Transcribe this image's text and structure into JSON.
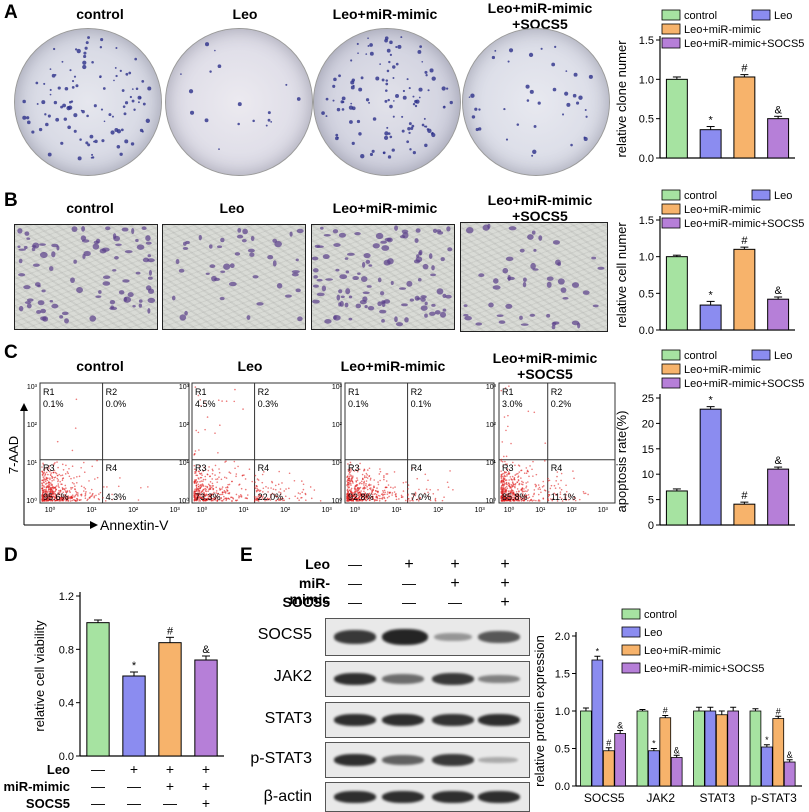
{
  "panel_A": {
    "letter": "A",
    "columns": [
      "control",
      "Leo",
      "Leo+miR-mimic",
      "Leo+miR-mimic\n+SOCS5"
    ]
  },
  "panel_B": {
    "letter": "B",
    "columns": [
      "control",
      "Leo",
      "Leo+miR-mimic",
      "Leo+miR-mimic\n+SOCS5"
    ]
  },
  "panel_C": {
    "letter": "C",
    "columns": [
      "control",
      "Leo",
      "Leo+miR-mimic",
      "Leo+miR-mimic\n+SOCS5"
    ],
    "y_axis_label": "7-AAD",
    "x_axis_label": "Annextin-V",
    "plots": [
      {
        "R1": "0.1%",
        "R2": "0.0%",
        "R3": "95.6%",
        "R4": "4.3%"
      },
      {
        "R1": "4.5%",
        "R2": "0.3%",
        "R3": "73.3%",
        "R4": "22.0%"
      },
      {
        "R1": "0.1%",
        "R2": "0.1%",
        "R3": "92.8%",
        "R4": "7.0%"
      },
      {
        "R1": "3.0%",
        "R2": "0.2%",
        "R3": "85.8%",
        "R4": "11.1%"
      }
    ],
    "region_names": {
      "r1": "R1",
      "r2": "R2",
      "r3": "R3",
      "r4": "R4"
    },
    "y_ticks": [
      "10³",
      "10²",
      "10¹",
      "10⁰"
    ],
    "x_ticks": [
      "10⁰",
      "10¹",
      "10²",
      "10³"
    ]
  },
  "panel_D": {
    "letter": "D"
  },
  "panel_E": {
    "letter": "E",
    "treatment_rows": [
      {
        "label": "Leo",
        "marks": [
          "—",
          "+",
          "+",
          "+"
        ]
      },
      {
        "label": "miR-mimic",
        "marks": [
          "—",
          "—",
          "+",
          "+"
        ]
      },
      {
        "label": "SOCS5",
        "marks": [
          "—",
          "—",
          "—",
          "+"
        ]
      }
    ],
    "blot_labels": [
      "SOCS5",
      "JAK2",
      "STAT3",
      "p-STAT3",
      "β-actin"
    ]
  },
  "colors": {
    "control": "#a6e3a1",
    "Leo": "#8b8cf0",
    "Leo+miR-mimic": "#f7b36b",
    "Leo+miR-mimic+SOCS5": "#b67fd8"
  },
  "chart_data": [
    {
      "id": "A",
      "type": "bar",
      "categories": [
        "control",
        "Leo",
        "Leo+miR-mimic",
        "Leo+miR-mimic+SOCS5"
      ],
      "values": [
        1.0,
        0.36,
        1.03,
        0.5
      ],
      "errors": [
        0.03,
        0.04,
        0.03,
        0.03
      ],
      "annotations": [
        "",
        "*",
        "#",
        "&"
      ],
      "ylabel": "relative clone numer",
      "ylim": [
        0,
        1.5
      ],
      "yticks": [
        "0.0",
        "0.5",
        "1.0",
        "1.5"
      ],
      "legend": [
        "control",
        "Leo",
        "Leo+miR-mimic",
        "Leo+miR-mimic+SOCS5"
      ],
      "legend_position": "top"
    },
    {
      "id": "B",
      "type": "bar",
      "categories": [
        "control",
        "Leo",
        "Leo+miR-mimic",
        "Leo+miR-mimic+SOCS5"
      ],
      "values": [
        1.0,
        0.34,
        1.1,
        0.42
      ],
      "errors": [
        0.02,
        0.05,
        0.03,
        0.03
      ],
      "annotations": [
        "",
        "*",
        "#",
        "&"
      ],
      "ylabel": "relative cell numer",
      "ylim": [
        0,
        1.5
      ],
      "yticks": [
        "0.0",
        "0.5",
        "1.0",
        "1.5"
      ],
      "legend": [
        "control",
        "Leo",
        "Leo+miR-mimic",
        "Leo+miR-mimic+SOCS5"
      ],
      "legend_position": "top"
    },
    {
      "id": "C",
      "type": "bar",
      "categories": [
        "control",
        "Leo",
        "Leo+miR-mimic",
        "Leo+miR-mimic+SOCS5"
      ],
      "values": [
        6.7,
        22.8,
        4.1,
        11.0
      ],
      "errors": [
        0.4,
        0.5,
        0.4,
        0.4
      ],
      "annotations": [
        "",
        "*",
        "#",
        "&"
      ],
      "ylabel": "apoptosis rate(%)",
      "ylim": [
        0,
        25
      ],
      "yticks": [
        "0",
        "5",
        "10",
        "15",
        "20",
        "25"
      ],
      "legend": [
        "control",
        "Leo",
        "Leo+miR-mimic",
        "Leo+miR-mimic+SOCS5"
      ],
      "legend_position": "top"
    },
    {
      "id": "D",
      "type": "bar",
      "categories": [
        "control",
        "Leo",
        "Leo+miR-mimic",
        "Leo+miR-mimic+SOCS5"
      ],
      "values": [
        1.0,
        0.6,
        0.85,
        0.72
      ],
      "errors": [
        0.02,
        0.03,
        0.04,
        0.03
      ],
      "annotations": [
        "",
        "*",
        "#",
        "&"
      ],
      "ylabel": "relative cell viability",
      "ylim": [
        0,
        1.2
      ],
      "yticks": [
        "0.0",
        "0.4",
        "0.8",
        "1.2"
      ],
      "treatment_rows": [
        {
          "label": "Leo",
          "marks": [
            "—",
            "+",
            "+",
            "+"
          ]
        },
        {
          "label": "miR-mimic",
          "marks": [
            "—",
            "—",
            "+",
            "+"
          ]
        },
        {
          "label": "SOCS5",
          "marks": [
            "—",
            "—",
            "—",
            "+"
          ]
        }
      ]
    },
    {
      "id": "E",
      "type": "bar",
      "categories": [
        "SOCS5",
        "JAK2",
        "STAT3",
        "p-STAT3"
      ],
      "series": [
        {
          "name": "control",
          "values": [
            1.0,
            1.0,
            1.0,
            1.0
          ],
          "errors": [
            0.04,
            0.02,
            0.05,
            0.03
          ],
          "annotations": [
            "",
            "",
            "",
            ""
          ]
        },
        {
          "name": "Leo",
          "values": [
            1.68,
            0.47,
            1.0,
            0.52
          ],
          "errors": [
            0.05,
            0.03,
            0.05,
            0.03
          ],
          "annotations": [
            "*",
            "*",
            "",
            "*"
          ]
        },
        {
          "name": "Leo+miR-mimic",
          "values": [
            0.47,
            0.91,
            0.95,
            0.9
          ],
          "errors": [
            0.04,
            0.03,
            0.05,
            0.03
          ],
          "annotations": [
            "#",
            "#",
            "",
            "#"
          ]
        },
        {
          "name": "Leo+miR-mimic+SOCS5",
          "values": [
            0.7,
            0.38,
            1.0,
            0.32
          ],
          "errors": [
            0.04,
            0.03,
            0.05,
            0.03
          ],
          "annotations": [
            "&",
            "&",
            "",
            "&"
          ]
        }
      ],
      "ylabel": "relative protein expression",
      "ylim": [
        0,
        2.0
      ],
      "yticks": [
        "0.0",
        "0.5",
        "1.0",
        "1.5",
        "2.0"
      ],
      "legend": [
        "control",
        "Leo",
        "Leo+miR-mimic",
        "Leo+miR-mimic+SOCS5"
      ],
      "legend_position": "top-right"
    }
  ]
}
